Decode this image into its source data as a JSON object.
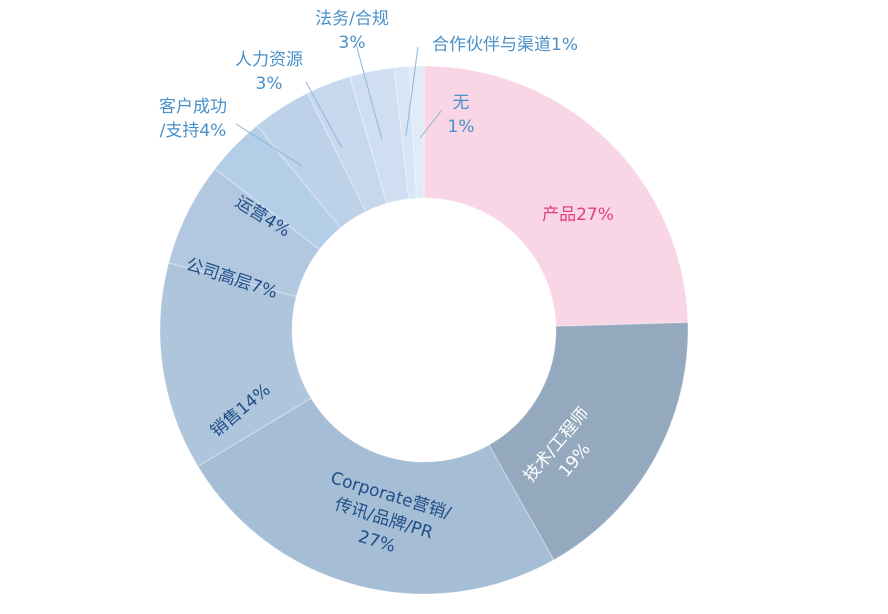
{
  "chart_data": {
    "type": "pie",
    "donut": true,
    "slices": [
      {
        "name": "产品",
        "value": 27,
        "color": "#f9d6e6",
        "text_color": "#e0407f",
        "label_lines": [
          "产品27%"
        ]
      },
      {
        "name": "技术/工程师",
        "value": 19,
        "color": "#94a9bd",
        "text_color": "#ffffff",
        "label_lines": [
          "技术/工程师",
          "19%"
        ]
      },
      {
        "name": "Corporate营销/传讯/品牌/PR",
        "value": 27,
        "color": "#a6bdd6",
        "text_color": "#1f4e86",
        "label_lines": [
          "Corporate营销/",
          "传讯/品牌/PR",
          "27%"
        ]
      },
      {
        "name": "销售",
        "value": 14,
        "color": "#aec5dc",
        "text_color": "#1f4e86",
        "label_lines": [
          "销售14%"
        ]
      },
      {
        "name": "公司高层",
        "value": 7,
        "color": "#b2c8e0",
        "text_color": "#1f4e86",
        "label_lines": [
          "公司高层7%"
        ]
      },
      {
        "name": "运营",
        "value": 4,
        "color": "#b4cee8",
        "text_color": "#1f4e86",
        "label_lines": [
          "运营4%"
        ]
      },
      {
        "name": "客户成功/支持",
        "value": 4,
        "color": "#bdd1e9",
        "text_color": "#4a90c8",
        "label_lines": [
          "客户成功",
          "/支持4%"
        ]
      },
      {
        "name": "人力资源",
        "value": 3,
        "color": "#c6d8ee",
        "text_color": "#4a90c8",
        "label_lines": [
          "人力资源",
          "3%"
        ]
      },
      {
        "name": "法务/合规",
        "value": 3,
        "color": "#cfdff1",
        "text_color": "#4a90c8",
        "label_lines": [
          "法务/合规",
          "3%"
        ]
      },
      {
        "name": "合作伙伴与渠道",
        "value": 1,
        "color": "#d7e5f4",
        "text_color": "#4a90c8",
        "label_lines": [
          "合作伙伴与渠道1%"
        ]
      },
      {
        "name": "无",
        "value": 1,
        "color": "#e1ebf7",
        "text_color": "#4a90c8",
        "label_lines": [
          "无",
          "1%"
        ]
      }
    ]
  }
}
